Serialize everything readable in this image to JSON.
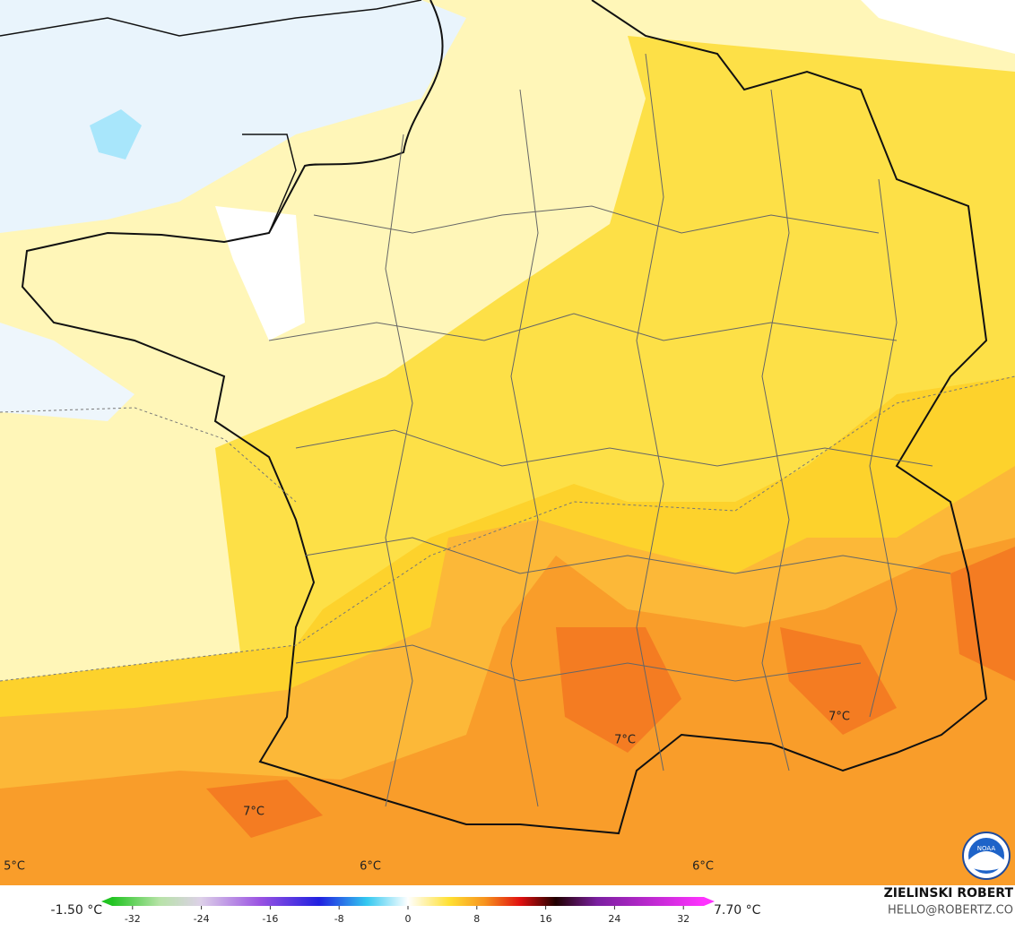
{
  "map": {
    "labels": [
      "7°C",
      "7°C",
      "7°C",
      "5°C",
      "6°C",
      "6°C"
    ]
  },
  "legend": {
    "min_label": "-1.50 °C",
    "max_label": "7.70 °C",
    "ticks": [
      -32,
      -24,
      -16,
      -8,
      0,
      8,
      16,
      24,
      32
    ]
  },
  "credit": {
    "name": "ZIELINSKI ROBERT",
    "contact": "HELLO@ROBERTZ.CO"
  },
  "logo": "NOAA"
}
